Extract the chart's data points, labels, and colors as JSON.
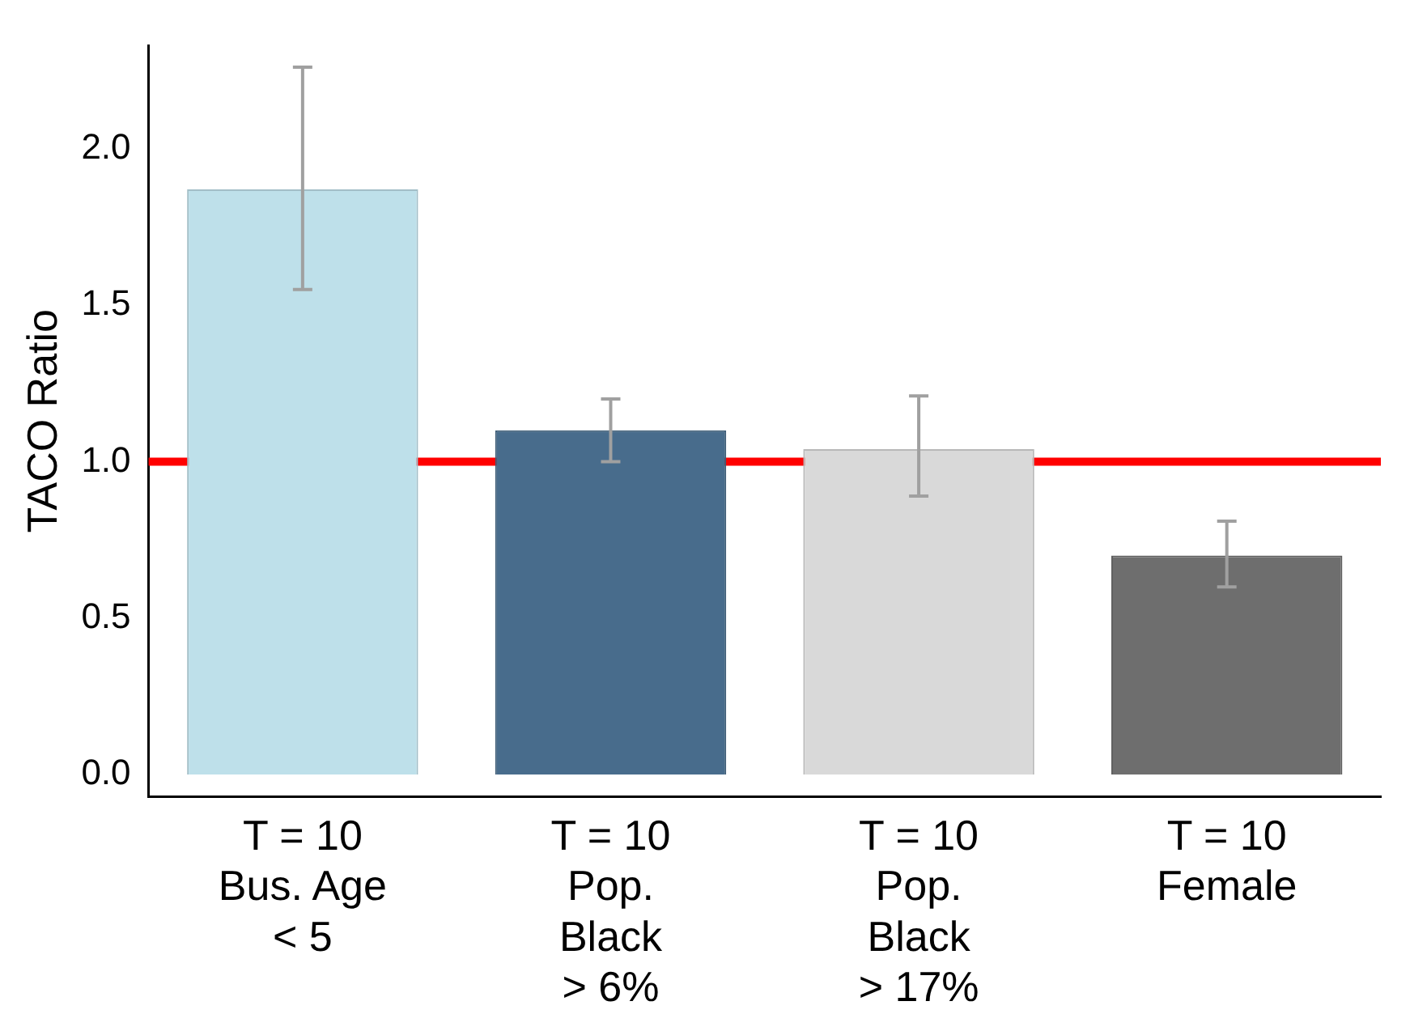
{
  "chart_data": {
    "type": "bar",
    "ylabel": "TACO Ratio",
    "categories": [
      "T = 10\nBus. Age\n< 5",
      "T = 10\nPop.\nBlack\n> 6%",
      "T = 10\nPop.\nBlack\n> 17%",
      "T = 10\nFemale"
    ],
    "values": [
      1.87,
      1.1,
      1.04,
      0.7
    ],
    "colors": [
      "#bee0ea",
      "#486c8c",
      "#d9d9d9",
      "#6e6e6e"
    ],
    "errors": [
      [
        1.55,
        2.26
      ],
      [
        1.0,
        1.2
      ],
      [
        0.89,
        1.21
      ],
      [
        0.6,
        0.81
      ]
    ],
    "ylim": [
      -0.07,
      2.33
    ],
    "yticks": [
      {
        "value": 0,
        "label": "0.0"
      },
      {
        "value": 0.5,
        "label": "0.5"
      },
      {
        "value": 1,
        "label": "1.0"
      },
      {
        "value": 1.5,
        "label": "1.5"
      },
      {
        "value": 2,
        "label": "2.0"
      }
    ],
    "ref_lines": [
      {
        "axis": "y",
        "value": 1,
        "color": "#ff0000"
      }
    ],
    "grid": false,
    "legend": false
  }
}
